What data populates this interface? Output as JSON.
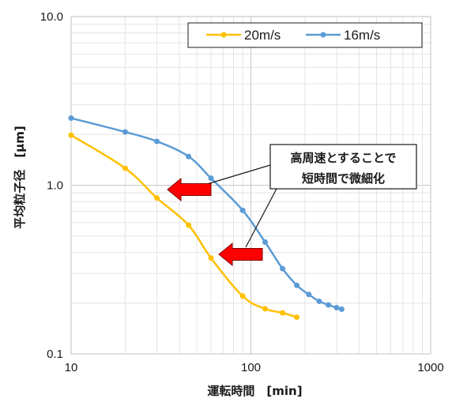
{
  "chart_data": {
    "type": "line",
    "x_scale": "log",
    "y_scale": "log",
    "xlim": [
      10,
      1000
    ],
    "ylim": [
      0.1,
      10
    ],
    "xlabel": "運転時間　[min]",
    "ylabel": "平均粒子径　[μm]",
    "x_tick_labels": [
      "10",
      "100",
      "1000"
    ],
    "y_tick_labels": [
      "0.1",
      "1.0",
      "10.0"
    ],
    "grid": true,
    "legend_position": "top-right",
    "series": [
      {
        "name": "20m/s",
        "color": "#FFC000",
        "x": [
          10,
          20,
          30,
          45,
          60,
          90,
          120,
          150,
          180
        ],
        "y": [
          1.98,
          1.26,
          0.84,
          0.58,
          0.37,
          0.22,
          0.185,
          0.175,
          0.165
        ]
      },
      {
        "name": "16m/s",
        "color": "#5B9BD5",
        "x": [
          10,
          20,
          30,
          45,
          60,
          90,
          120,
          150,
          180,
          210,
          240,
          270,
          300,
          320
        ],
        "y": [
          2.5,
          2.07,
          1.82,
          1.48,
          1.1,
          0.71,
          0.46,
          0.32,
          0.255,
          0.225,
          0.205,
          0.195,
          0.188,
          0.184
        ]
      }
    ],
    "annotation": {
      "lines": [
        "高周速とすることで",
        "短時間で微細化"
      ],
      "arrow_color": "#FF0000"
    }
  }
}
